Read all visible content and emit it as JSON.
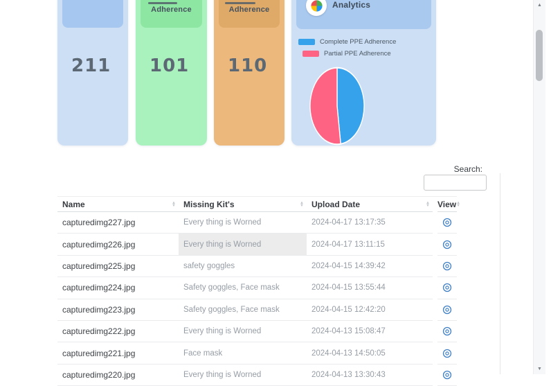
{
  "stats": {
    "cards": [
      {
        "label": "",
        "value": "211",
        "bg": "#cddff5",
        "header_bg": "#a5c7f0"
      },
      {
        "label": "Adherence",
        "value": "101",
        "bg": "#aaf2bd",
        "header_bg": "#8de6a2"
      },
      {
        "label": "Adherence",
        "value": "110",
        "bg": "#ecb87b",
        "header_bg": "#dfa967"
      }
    ]
  },
  "analytics": {
    "title": "Analytics",
    "legend": [
      {
        "label": "Complete PPE Adherence",
        "color": "#36a2eb"
      },
      {
        "label": "Partial PPE Adherence",
        "color": "#ff6384"
      }
    ]
  },
  "chart_data": {
    "type": "pie",
    "title": "Analytics",
    "labels": [
      "Complete PPE Adherence",
      "Partial PPE Adherence"
    ],
    "values": [
      101,
      110
    ],
    "colors": [
      "#36a2eb",
      "#ff6384"
    ],
    "legend_position": "top"
  },
  "search": {
    "label": "Search:",
    "value": ""
  },
  "table": {
    "columns": [
      "Name",
      "Missing Kit's",
      "Upload Date",
      "View"
    ],
    "rows": [
      {
        "name": "capturedimg227.jpg",
        "missing": "Every thing is Worned",
        "date": "2024-04-17 13:17:35"
      },
      {
        "name": "capturedimg226.jpg",
        "missing": "Every thing is Worned",
        "date": "2024-04-17 13:11:15",
        "highlight": true
      },
      {
        "name": "capturedimg225.jpg",
        "missing": "safety goggles",
        "date": "2024-04-15 14:39:42"
      },
      {
        "name": "capturedimg224.jpg",
        "missing": "Safety goggles, Face mask",
        "date": "2024-04-15 13:55:44"
      },
      {
        "name": "capturedimg223.jpg",
        "missing": "Safety goggles, Face mask",
        "date": "2024-04-15 12:42:20"
      },
      {
        "name": "capturedimg222.jpg",
        "missing": "Every thing is Worned",
        "date": "2024-04-13 15:08:47"
      },
      {
        "name": "capturedimg221.jpg",
        "missing": "Face mask",
        "date": "2024-04-13 14:50:05"
      },
      {
        "name": "capturedimg220.jpg",
        "missing": "Every thing is Worned",
        "date": "2024-04-13 13:30:43"
      }
    ]
  },
  "colors": {
    "view_icon": "#3f7fc4",
    "pie_complete": "#36a2eb",
    "pie_partial": "#ff6384"
  }
}
